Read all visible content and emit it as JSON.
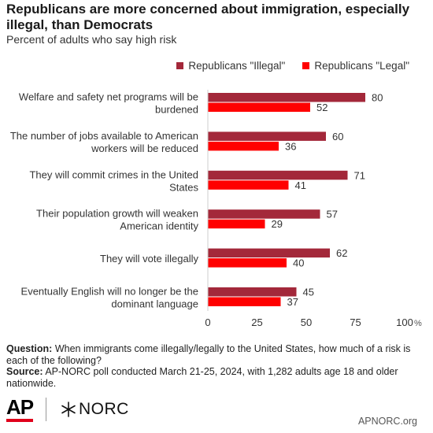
{
  "header": {
    "title": "Republicans are more concerned about immigration, especially illegal, than Democrats",
    "subtitle": "Percent of adults who say high risk"
  },
  "legend": {
    "illegal": "Republicans \"Illegal\"",
    "legal": "Republicans \"Legal\""
  },
  "colors": {
    "illegal": "#a3283a",
    "legal": "#ff0000",
    "axis": "#cfcfcf"
  },
  "chart_data": {
    "type": "bar",
    "orientation": "horizontal",
    "categories": [
      [
        "Welfare and safety net programs will be",
        "burdened"
      ],
      [
        "The number of jobs available to American",
        "workers will be reduced"
      ],
      [
        "They will commit crimes in the United",
        "States"
      ],
      [
        "Their population growth will weaken",
        "American identity"
      ],
      [
        "They will vote illegally"
      ],
      [
        "Eventually English will no longer be the",
        "dominant language"
      ]
    ],
    "series": [
      {
        "name": "Republicans \"Illegal\"",
        "values": [
          80,
          60,
          71,
          57,
          62,
          45
        ]
      },
      {
        "name": "Republicans \"Legal\"",
        "values": [
          52,
          36,
          41,
          29,
          40,
          37
        ]
      }
    ],
    "xlim": [
      0,
      100
    ],
    "xticks": [
      "0",
      "25",
      "50",
      "75",
      "100"
    ],
    "xunit": "%",
    "grid": false,
    "legend_position": "top-right"
  },
  "footer": {
    "question_label": "Question:",
    "question_text": "When immigrants come illegally/legally to the United States, how much of a risk is each of the following?",
    "source_label": "Source:",
    "source_text": "AP-NORC poll conducted March 21-25, 2024, with 1,282 adults age 18 and older nationwide."
  },
  "logos": {
    "ap": "AP",
    "norc": "NORC",
    "norc_icon": "norc-star-icon"
  },
  "site": "APNORC.org"
}
